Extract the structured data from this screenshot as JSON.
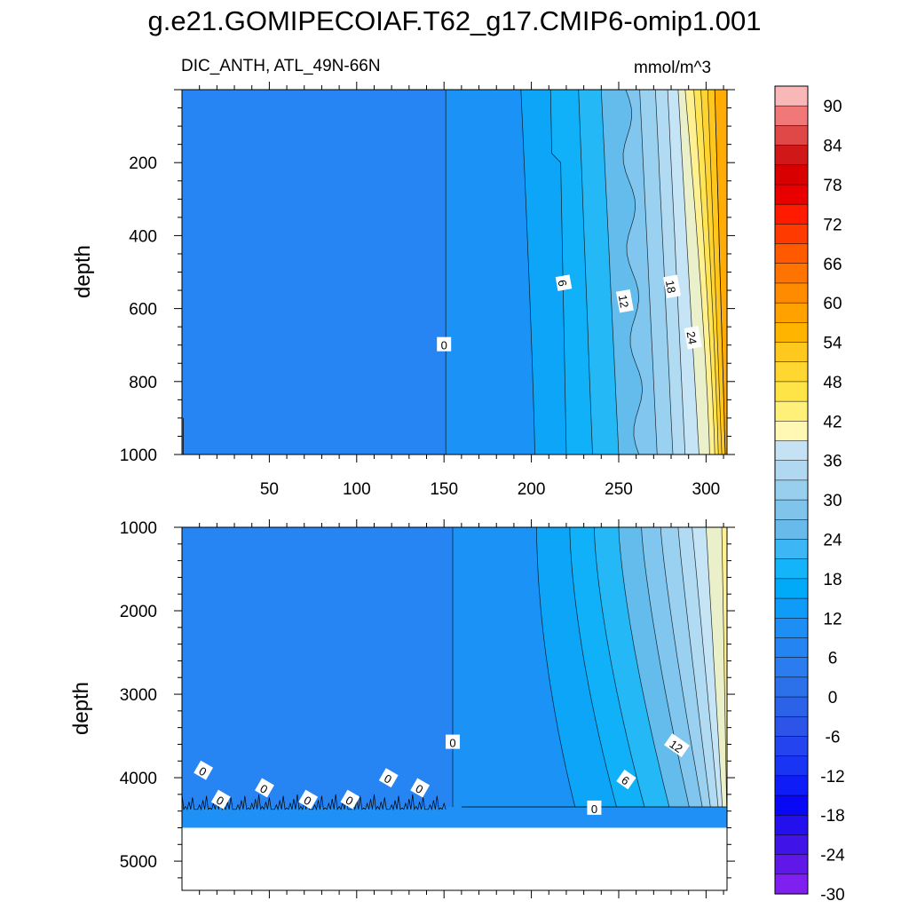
{
  "title": "g.e21.GOMIPECOIAF.T62_g17.CMIP6-omip1.001",
  "subtitle": "DIC_ANTH, ATL_49N-66N",
  "units": "mmol/m^3",
  "chart_data": [
    {
      "type": "contour",
      "panel": "upper",
      "variable": "DIC_ANTH",
      "region": "ATL_49N-66N",
      "ylabel": "depth",
      "xlabel": "",
      "xlim": [
        0,
        312
      ],
      "ylim": [
        1000,
        0
      ],
      "y_reversed": true,
      "x_ticks": [
        50,
        100,
        150,
        200,
        250,
        300
      ],
      "y_ticks": [
        200,
        400,
        600,
        800,
        1000
      ],
      "contour_levels": [
        0,
        3,
        6,
        9,
        12,
        15,
        18,
        21,
        24,
        27,
        30,
        33,
        36,
        39,
        42,
        45
      ],
      "contour_labels": [
        {
          "text": "0",
          "x": 150,
          "y": 700
        },
        {
          "text": "6",
          "x": 218,
          "y": 530
        },
        {
          "text": "12",
          "x": 253,
          "y": 580
        },
        {
          "text": "18",
          "x": 280,
          "y": 540
        },
        {
          "text": "24",
          "x": 292,
          "y": 680
        }
      ]
    },
    {
      "type": "contour",
      "panel": "lower",
      "variable": "DIC_ANTH",
      "region": "ATL_49N-66N",
      "ylabel": "depth",
      "xlabel": "",
      "xlim": [
        0,
        312
      ],
      "ylim": [
        5350,
        1000
      ],
      "y_reversed": true,
      "y_ticks": [
        1000,
        2000,
        3000,
        4000,
        5000
      ],
      "data_bottom_depth": 4600,
      "contour_levels": [
        0,
        3,
        6,
        9,
        12,
        15,
        18,
        21,
        24,
        27,
        30
      ],
      "contour_labels": [
        {
          "text": "0",
          "x": 155,
          "y": 3580
        },
        {
          "text": "12",
          "x": 283,
          "y": 3620
        },
        {
          "text": "6",
          "x": 254,
          "y": 4030
        },
        {
          "text": "0",
          "x": 236,
          "y": 4370
        },
        {
          "text": "0",
          "x": 12,
          "y": 3920
        },
        {
          "text": "0",
          "x": 22,
          "y": 4270
        },
        {
          "text": "0",
          "x": 47,
          "y": 4130
        },
        {
          "text": "0",
          "x": 72,
          "y": 4270
        },
        {
          "text": "0",
          "x": 96,
          "y": 4270
        },
        {
          "text": "0",
          "x": 118,
          "y": 4010
        },
        {
          "text": "0",
          "x": 136,
          "y": 4130
        }
      ]
    }
  ],
  "colorbar": {
    "labels": [
      "90",
      "84",
      "78",
      "72",
      "66",
      "60",
      "54",
      "48",
      "42",
      "36",
      "30",
      "24",
      "18",
      "12",
      "6",
      "0",
      "-6",
      "-12",
      "-18",
      "-24",
      "-30"
    ],
    "colors": [
      "#f9b8b8",
      "#f07878",
      "#e04848",
      "#d01818",
      "#d80000",
      "#e80000",
      "#ff1a00",
      "#ff3a00",
      "#ff5a00",
      "#ff7400",
      "#ff8c00",
      "#ffa200",
      "#ffb400",
      "#ffc81e",
      "#ffd730",
      "#ffe448",
      "#fff07a",
      "#fff8b4",
      "#c4e2f4",
      "#b0d8f0",
      "#98ceee",
      "#80c4ec",
      "#68baea",
      "#3cb6f4",
      "#14b4fa",
      "#00aaf8",
      "#0f9cf8",
      "#1c8ef4",
      "#2484f2",
      "#2b7cee",
      "#2c70ea",
      "#2c62e8",
      "#2c54e8",
      "#2444f0",
      "#1a34f4",
      "#0e1cf8",
      "#0808f4",
      "#2410ec",
      "#4014e8",
      "#6018e8",
      "#8020f0"
    ]
  }
}
